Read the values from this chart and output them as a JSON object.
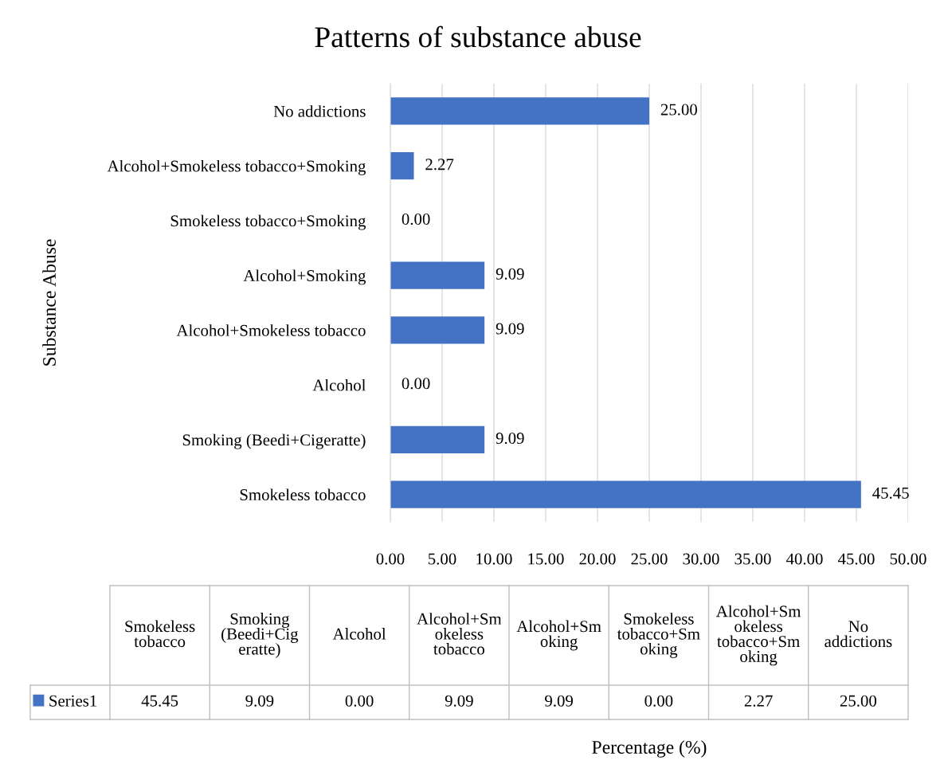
{
  "chart_data": {
    "type": "bar",
    "orientation": "horizontal",
    "title": "Patterns of substance abuse",
    "annotations": [
      "Percentage (%)"
    ],
    "ylabel": "Substance Abuse",
    "categories": [
      "No addictions",
      "Alcohol+Smokeless tobacco+Smoking",
      "Smokeless tobacco+Smoking",
      "Alcohol+Smoking",
      "Alcohol+Smokeless tobacco",
      "Alcohol",
      "Smoking (Beedi+Cigeratte)",
      "Smokeless tobacco"
    ],
    "series": [
      {
        "name": "Series1",
        "color": "#4472c4",
        "values": [
          25.0,
          2.27,
          0.0,
          9.09,
          9.09,
          0.0,
          9.09,
          45.45
        ],
        "value_labels": [
          "25.00",
          "2.27",
          "0.00",
          "9.09",
          "9.09",
          "0.00",
          "9.09",
          "45.45"
        ]
      }
    ],
    "xlim": [
      0,
      50
    ],
    "xticks": [
      {
        "value": 0,
        "label": "0.00"
      },
      {
        "value": 5,
        "label": "5.00"
      },
      {
        "value": 10,
        "label": "10.00"
      },
      {
        "value": 15,
        "label": "15.00"
      },
      {
        "value": 20,
        "label": "20.00"
      },
      {
        "value": 25,
        "label": "25.00"
      },
      {
        "value": 30,
        "label": "30.00"
      },
      {
        "value": 35,
        "label": "35.00"
      },
      {
        "value": 40,
        "label": "40.00"
      },
      {
        "value": 45,
        "label": "45.00"
      },
      {
        "value": 50,
        "label": "50.00"
      }
    ],
    "grid": "x",
    "legend": "bottom"
  }
}
